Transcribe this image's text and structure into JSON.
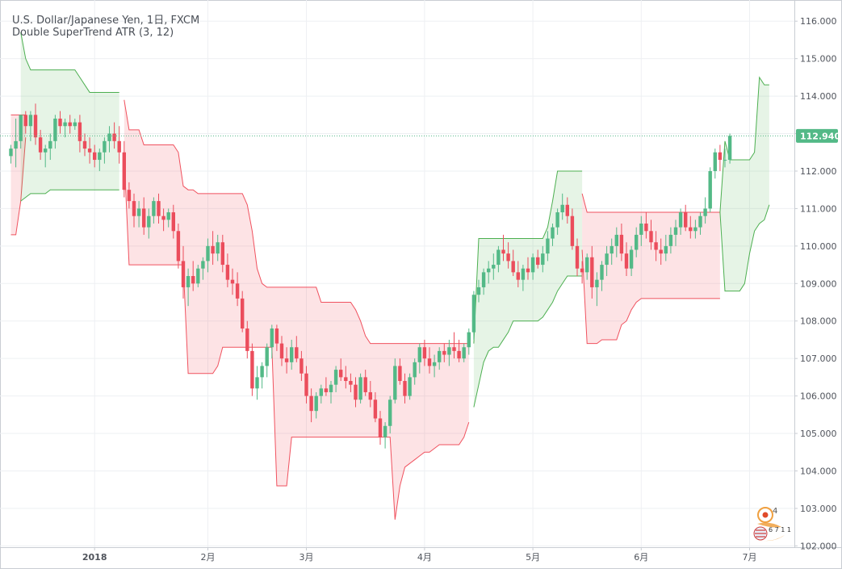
{
  "legend": {
    "symbol_line": "U.S. Dollar/Japanese Yen, 1日, FXCM",
    "indicator_line": "Double SuperTrend ATR (3, 12)"
  },
  "colors": {
    "bull_candle": "#53b987",
    "bear_candle": "#eb4d5c",
    "up_band_line": "#4caf50",
    "up_band_fill": "rgba(76,175,80,0.14)",
    "down_band_line": "#f0525f",
    "down_band_fill": "rgba(240,82,95,0.16)",
    "price_badge": "#53b987",
    "grid": "#eef0f3"
  },
  "price_badge": {
    "label": "112.940",
    "value": 112.94
  },
  "watermark": {
    "icon": "tradingview-watermark-icon",
    "text_4": "4",
    "text_671": "6 7 1 1"
  },
  "chart_data": {
    "type": "candlestick",
    "title": "U.S. Dollar/Japanese Yen, 1日, FXCM",
    "indicator": "Double SuperTrend ATR (3, 12)",
    "y_axis": {
      "side": "right",
      "range": [
        101.9,
        116.5
      ],
      "ticks": [
        102.0,
        103.0,
        104.0,
        105.0,
        106.0,
        107.0,
        108.0,
        109.0,
        110.0,
        111.0,
        112.0,
        113.0,
        114.0,
        115.0,
        116.0
      ],
      "tick_labels": [
        "102.000",
        "103.000",
        "104.000",
        "105.000",
        "106.000",
        "107.000",
        "108.000",
        "109.000",
        "110.000",
        "111.000",
        "112.000",
        "113.000",
        "114.000",
        "115.000",
        "116.000"
      ]
    },
    "x_axis": {
      "labels": [
        "2018",
        "2月",
        "3月",
        "4月",
        "5月",
        "6月",
        "7月"
      ],
      "label_positions_bar_index": [
        17,
        40,
        60,
        84,
        106,
        128,
        150
      ]
    },
    "grid": true,
    "last_price": 112.94,
    "candles": [
      [
        112.4,
        112.7,
        112.2,
        112.6
      ],
      [
        112.6,
        113.4,
        112.1,
        112.8
      ],
      [
        112.8,
        113.5,
        112.6,
        113.5
      ],
      [
        113.5,
        113.6,
        113.0,
        113.2
      ],
      [
        113.2,
        113.6,
        112.8,
        113.5
      ],
      [
        113.5,
        113.8,
        112.7,
        112.9
      ],
      [
        112.9,
        113.1,
        112.3,
        112.5
      ],
      [
        112.5,
        112.7,
        112.1,
        112.6
      ],
      [
        112.6,
        113.0,
        112.3,
        112.8
      ],
      [
        112.8,
        113.5,
        112.6,
        113.4
      ],
      [
        113.4,
        113.6,
        113.0,
        113.2
      ],
      [
        113.2,
        113.4,
        112.9,
        113.3
      ],
      [
        113.3,
        113.5,
        113.0,
        113.2
      ],
      [
        113.2,
        113.4,
        113.1,
        113.3
      ],
      [
        113.3,
        113.5,
        112.5,
        112.8
      ],
      [
        112.8,
        113.0,
        112.4,
        112.6
      ],
      [
        112.6,
        112.9,
        112.2,
        112.5
      ],
      [
        112.5,
        112.7,
        112.1,
        112.3
      ],
      [
        112.3,
        112.6,
        112.0,
        112.5
      ],
      [
        112.5,
        112.9,
        112.2,
        112.8
      ],
      [
        112.8,
        113.2,
        112.5,
        113.0
      ],
      [
        113.0,
        113.3,
        112.6,
        112.8
      ],
      [
        112.8,
        113.2,
        112.2,
        112.5
      ],
      [
        112.5,
        112.8,
        111.3,
        111.5
      ],
      [
        111.5,
        111.7,
        111.0,
        111.2
      ],
      [
        111.2,
        111.4,
        110.5,
        110.8
      ],
      [
        110.8,
        111.2,
        110.5,
        111.0
      ],
      [
        111.0,
        111.3,
        110.3,
        110.5
      ],
      [
        110.5,
        111.0,
        110.2,
        110.8
      ],
      [
        110.8,
        111.3,
        110.6,
        111.2
      ],
      [
        111.2,
        111.4,
        110.6,
        110.8
      ],
      [
        110.8,
        111.0,
        110.4,
        110.7
      ],
      [
        110.7,
        111.0,
        110.5,
        110.9
      ],
      [
        110.9,
        111.1,
        110.2,
        110.4
      ],
      [
        110.4,
        110.6,
        109.4,
        109.6
      ],
      [
        109.6,
        110.0,
        108.6,
        108.9
      ],
      [
        108.9,
        109.4,
        108.4,
        109.2
      ],
      [
        109.2,
        109.6,
        108.8,
        109.0
      ],
      [
        109.0,
        109.5,
        108.9,
        109.4
      ],
      [
        109.4,
        109.7,
        109.1,
        109.6
      ],
      [
        109.6,
        110.2,
        109.3,
        110.0
      ],
      [
        110.0,
        110.4,
        109.5,
        109.8
      ],
      [
        109.8,
        110.3,
        109.6,
        110.1
      ],
      [
        110.1,
        110.3,
        109.3,
        109.5
      ],
      [
        109.5,
        109.8,
        108.9,
        109.1
      ],
      [
        109.1,
        109.4,
        108.7,
        109.0
      ],
      [
        109.0,
        109.3,
        108.4,
        108.6
      ],
      [
        108.6,
        108.8,
        107.7,
        107.8
      ],
      [
        107.8,
        108.0,
        107.0,
        107.2
      ],
      [
        107.2,
        107.4,
        106.0,
        106.2
      ],
      [
        106.2,
        106.8,
        105.9,
        106.5
      ],
      [
        106.5,
        106.9,
        106.2,
        106.8
      ],
      [
        106.8,
        107.4,
        106.5,
        107.3
      ],
      [
        107.3,
        107.9,
        107.0,
        107.8
      ],
      [
        107.8,
        107.9,
        107.2,
        107.4
      ],
      [
        107.4,
        107.6,
        106.8,
        107.0
      ],
      [
        107.0,
        107.3,
        106.6,
        106.9
      ],
      [
        106.9,
        107.5,
        106.7,
        107.3
      ],
      [
        107.3,
        107.6,
        106.9,
        107.0
      ],
      [
        107.0,
        107.2,
        106.4,
        106.6
      ],
      [
        106.6,
        106.8,
        105.8,
        106.0
      ],
      [
        106.0,
        106.2,
        105.3,
        105.6
      ],
      [
        105.6,
        106.1,
        105.4,
        106.0
      ],
      [
        106.0,
        106.3,
        105.8,
        106.2
      ],
      [
        106.2,
        106.5,
        106.0,
        106.1
      ],
      [
        106.1,
        106.4,
        105.8,
        106.3
      ],
      [
        106.3,
        106.8,
        106.1,
        106.7
      ],
      [
        106.7,
        107.0,
        106.4,
        106.5
      ],
      [
        106.5,
        106.8,
        106.2,
        106.4
      ],
      [
        106.4,
        106.6,
        106.1,
        106.3
      ],
      [
        106.3,
        106.5,
        105.7,
        105.9
      ],
      [
        105.9,
        106.6,
        105.8,
        106.5
      ],
      [
        106.5,
        106.7,
        106.0,
        106.1
      ],
      [
        106.1,
        106.4,
        105.7,
        105.9
      ],
      [
        105.9,
        106.1,
        105.3,
        105.4
      ],
      [
        105.4,
        105.6,
        104.7,
        104.9
      ],
      [
        104.9,
        105.3,
        104.6,
        105.2
      ],
      [
        105.2,
        106.0,
        105.0,
        105.9
      ],
      [
        105.9,
        107.0,
        105.8,
        106.8
      ],
      [
        106.8,
        107.0,
        106.3,
        106.4
      ],
      [
        106.4,
        106.6,
        105.8,
        106.0
      ],
      [
        106.0,
        106.6,
        105.9,
        106.5
      ],
      [
        106.5,
        107.0,
        106.3,
        106.9
      ],
      [
        106.9,
        107.4,
        106.6,
        107.3
      ],
      [
        107.3,
        107.5,
        106.8,
        107.0
      ],
      [
        107.0,
        107.3,
        106.6,
        106.8
      ],
      [
        106.8,
        107.1,
        106.5,
        106.9
      ],
      [
        106.9,
        107.3,
        106.7,
        107.2
      ],
      [
        107.2,
        107.4,
        106.9,
        107.1
      ],
      [
        107.1,
        107.5,
        106.8,
        107.3
      ],
      [
        107.3,
        107.7,
        107.0,
        107.2
      ],
      [
        107.2,
        107.5,
        106.9,
        107.0
      ],
      [
        107.0,
        107.4,
        106.9,
        107.3
      ],
      [
        107.3,
        107.8,
        107.1,
        107.7
      ],
      [
        107.7,
        108.8,
        107.5,
        108.7
      ],
      [
        108.7,
        109.1,
        108.5,
        108.9
      ],
      [
        108.9,
        109.4,
        108.7,
        109.3
      ],
      [
        109.3,
        109.6,
        109.0,
        109.4
      ],
      [
        109.4,
        109.8,
        109.1,
        109.5
      ],
      [
        109.5,
        110.0,
        109.3,
        109.9
      ],
      [
        109.9,
        110.3,
        109.6,
        109.8
      ],
      [
        109.8,
        110.1,
        109.4,
        109.6
      ],
      [
        109.6,
        109.9,
        109.2,
        109.3
      ],
      [
        109.3,
        109.6,
        108.9,
        109.1
      ],
      [
        109.1,
        109.5,
        108.8,
        109.4
      ],
      [
        109.4,
        109.7,
        109.1,
        109.3
      ],
      [
        109.3,
        109.8,
        109.1,
        109.7
      ],
      [
        109.7,
        109.9,
        109.4,
        109.5
      ],
      [
        109.5,
        110.0,
        109.3,
        109.8
      ],
      [
        109.8,
        110.4,
        109.6,
        110.2
      ],
      [
        110.2,
        110.6,
        110.0,
        110.5
      ],
      [
        110.5,
        111.0,
        110.3,
        110.9
      ],
      [
        110.9,
        111.4,
        110.7,
        111.1
      ],
      [
        111.1,
        111.3,
        110.6,
        110.8
      ],
      [
        110.8,
        111.0,
        109.9,
        110.0
      ],
      [
        110.0,
        110.2,
        109.2,
        109.4
      ],
      [
        109.4,
        109.6,
        109.0,
        109.3
      ],
      [
        109.3,
        109.8,
        109.1,
        109.7
      ],
      [
        109.7,
        110.0,
        108.6,
        108.9
      ],
      [
        108.9,
        109.3,
        108.4,
        109.1
      ],
      [
        109.1,
        109.6,
        108.8,
        109.5
      ],
      [
        109.5,
        110.0,
        109.2,
        109.8
      ],
      [
        109.8,
        110.2,
        109.5,
        110.0
      ],
      [
        110.0,
        110.5,
        109.7,
        110.3
      ],
      [
        110.3,
        110.6,
        109.6,
        109.8
      ],
      [
        109.8,
        110.1,
        109.2,
        109.4
      ],
      [
        109.4,
        110.0,
        109.2,
        109.9
      ],
      [
        109.9,
        110.5,
        109.7,
        110.3
      ],
      [
        110.3,
        110.8,
        110.0,
        110.6
      ],
      [
        110.6,
        110.9,
        110.2,
        110.4
      ],
      [
        110.4,
        110.7,
        109.9,
        110.1
      ],
      [
        110.1,
        110.4,
        109.6,
        109.9
      ],
      [
        109.9,
        110.2,
        109.5,
        109.8
      ],
      [
        109.8,
        110.3,
        109.6,
        110.0
      ],
      [
        110.0,
        110.5,
        109.8,
        110.3
      ],
      [
        110.3,
        110.7,
        110.0,
        110.5
      ],
      [
        110.5,
        111.0,
        110.3,
        110.9
      ],
      [
        110.9,
        111.1,
        110.4,
        110.5
      ],
      [
        110.5,
        110.8,
        110.2,
        110.4
      ],
      [
        110.4,
        110.7,
        110.2,
        110.5
      ],
      [
        110.5,
        110.9,
        110.3,
        110.8
      ],
      [
        110.8,
        111.3,
        110.6,
        111.0
      ],
      [
        111.0,
        112.1,
        110.9,
        112.0
      ],
      [
        112.0,
        112.6,
        111.8,
        112.5
      ],
      [
        112.5,
        112.7,
        112.0,
        112.3
      ],
      [
        112.3,
        112.6,
        112.1,
        112.3
      ],
      [
        112.3,
        113.0,
        112.2,
        112.94
      ]
    ],
    "supertrend_up_band": [
      {
        "from_bar": 2,
        "to_bar": 22,
        "lower": [
          111.2,
          111.3,
          111.4,
          111.4,
          111.4,
          111.4,
          111.5,
          111.5,
          111.5,
          111.5,
          111.5,
          111.5,
          111.5,
          111.5,
          111.5,
          111.5,
          111.5,
          111.5,
          111.5,
          111.5,
          111.5
        ],
        "upper": [
          115.7,
          115.0,
          114.7,
          114.7,
          114.7,
          114.7,
          114.7,
          114.7,
          114.7,
          114.7,
          114.7,
          114.7,
          114.5,
          114.3,
          114.1,
          114.1,
          114.1,
          114.1,
          114.1,
          114.1,
          114.1
        ]
      },
      {
        "from_bar": 94,
        "to_bar": 116,
        "lower": [
          105.7,
          106.3,
          106.9,
          107.2,
          107.3,
          107.3,
          107.5,
          107.7,
          108.0,
          108.0,
          108.0,
          108.0,
          108.0,
          108.0,
          108.1,
          108.3,
          108.5,
          108.8,
          109.0,
          109.2,
          109.2,
          109.2,
          109.2
        ],
        "upper": [
          107.4,
          110.2,
          110.2,
          110.2,
          110.2,
          110.2,
          110.2,
          110.2,
          110.2,
          110.2,
          110.2,
          110.2,
          110.2,
          110.2,
          110.2,
          110.5,
          111.2,
          112.0,
          112.0,
          112.0,
          112.0,
          112.0,
          112.0
        ]
      },
      {
        "from_bar": 144,
        "to_bar": 154,
        "lower": [
          110.9,
          108.8,
          108.8,
          108.8,
          108.8,
          109.0,
          109.8,
          110.4,
          110.6,
          110.7,
          111.1
        ],
        "upper": [
          110.9,
          112.8,
          112.3,
          112.3,
          112.3,
          112.3,
          112.3,
          112.5,
          114.5,
          114.3,
          114.3
        ]
      }
    ],
    "supertrend_down_band": [
      {
        "from_bar": 0,
        "to_bar": 3,
        "lower": [
          110.3,
          110.3,
          111.2,
          112.9
        ],
        "upper": [
          113.5,
          113.5,
          113.5,
          113.5
        ]
      },
      {
        "from_bar": 23,
        "to_bar": 93,
        "lower": [
          112.4,
          109.5,
          109.5,
          109.5,
          109.5,
          109.5,
          109.5,
          109.5,
          109.5,
          109.5,
          109.5,
          109.5,
          109.5,
          106.6,
          106.6,
          106.6,
          106.6,
          106.6,
          106.6,
          106.8,
          107.3,
          107.3,
          107.3,
          107.3,
          107.3,
          107.3,
          107.3,
          107.3,
          107.3,
          107.3,
          107.3,
          103.6,
          103.6,
          103.6,
          104.9,
          104.9,
          104.9,
          104.9,
          104.9,
          104.9,
          104.9,
          104.9,
          104.9,
          104.9,
          104.9,
          104.9,
          104.9,
          104.9,
          104.9,
          104.9,
          104.9,
          104.9,
          104.9,
          104.9,
          104.9,
          102.7,
          103.6,
          104.1,
          104.2,
          104.3,
          104.4,
          104.5,
          104.5,
          104.6,
          104.7,
          104.7,
          104.7,
          104.7,
          104.7,
          104.9,
          105.3
        ],
        "upper": [
          113.9,
          113.1,
          113.1,
          113.1,
          112.7,
          112.7,
          112.7,
          112.7,
          112.7,
          112.7,
          112.7,
          112.5,
          111.6,
          111.5,
          111.5,
          111.4,
          111.4,
          111.4,
          111.4,
          111.4,
          111.4,
          111.4,
          111.4,
          111.4,
          111.4,
          111.1,
          110.4,
          109.4,
          109.0,
          108.9,
          108.9,
          108.9,
          108.9,
          108.9,
          108.9,
          108.9,
          108.9,
          108.9,
          108.9,
          108.9,
          108.5,
          108.5,
          108.5,
          108.5,
          108.5,
          108.5,
          108.5,
          108.3,
          108.0,
          107.6,
          107.4,
          107.4,
          107.4,
          107.4,
          107.4,
          107.4,
          107.4,
          107.4,
          107.4,
          107.4,
          107.4,
          107.4,
          107.4,
          107.4,
          107.4,
          107.4,
          107.4,
          107.4,
          107.4,
          107.4,
          107.4
        ]
      },
      {
        "from_bar": 116,
        "to_bar": 144,
        "lower": [
          109.9,
          107.4,
          107.4,
          107.4,
          107.5,
          107.5,
          107.5,
          107.5,
          107.9,
          108.0,
          108.3,
          108.5,
          108.6,
          108.6,
          108.6,
          108.6,
          108.6,
          108.6,
          108.6,
          108.6,
          108.6,
          108.6,
          108.6,
          108.6,
          108.6,
          108.6,
          108.6,
          108.6,
          108.6
        ],
        "upper": [
          111.4,
          110.9,
          110.9,
          110.9,
          110.9,
          110.9,
          110.9,
          110.9,
          110.9,
          110.9,
          110.9,
          110.9,
          110.9,
          110.9,
          110.9,
          110.9,
          110.9,
          110.9,
          110.9,
          110.9,
          110.9,
          110.9,
          110.9,
          110.9,
          110.9,
          110.9,
          110.9,
          110.9,
          110.9
        ]
      }
    ]
  }
}
